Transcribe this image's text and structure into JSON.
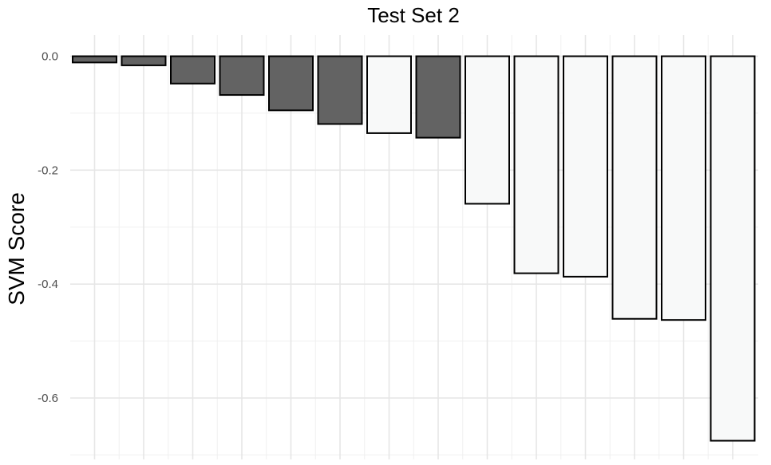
{
  "chart_data": {
    "type": "bar",
    "title": "Test Set 2",
    "xlabel": "",
    "ylabel": "SVM Score",
    "ylim": [
      -0.7,
      0.03
    ],
    "yticks": [
      0.0,
      -0.2,
      -0.4,
      -0.6
    ],
    "ytick_labels": [
      "0.0",
      "-0.2",
      "-0.4",
      "-0.6"
    ],
    "grid": true,
    "legend": "none",
    "colors": {
      "dark": "#636363",
      "light": "#f8f9f9",
      "outline": "#000000"
    },
    "values": [
      -0.011,
      -0.016,
      -0.048,
      -0.068,
      -0.095,
      -0.119,
      -0.135,
      -0.143,
      -0.259,
      -0.381,
      -0.387,
      -0.461,
      -0.463,
      -0.675
    ],
    "fill_groups": [
      "dark",
      "dark",
      "dark",
      "dark",
      "dark",
      "dark",
      "light",
      "dark",
      "light",
      "light",
      "light",
      "light",
      "light",
      "light"
    ]
  }
}
